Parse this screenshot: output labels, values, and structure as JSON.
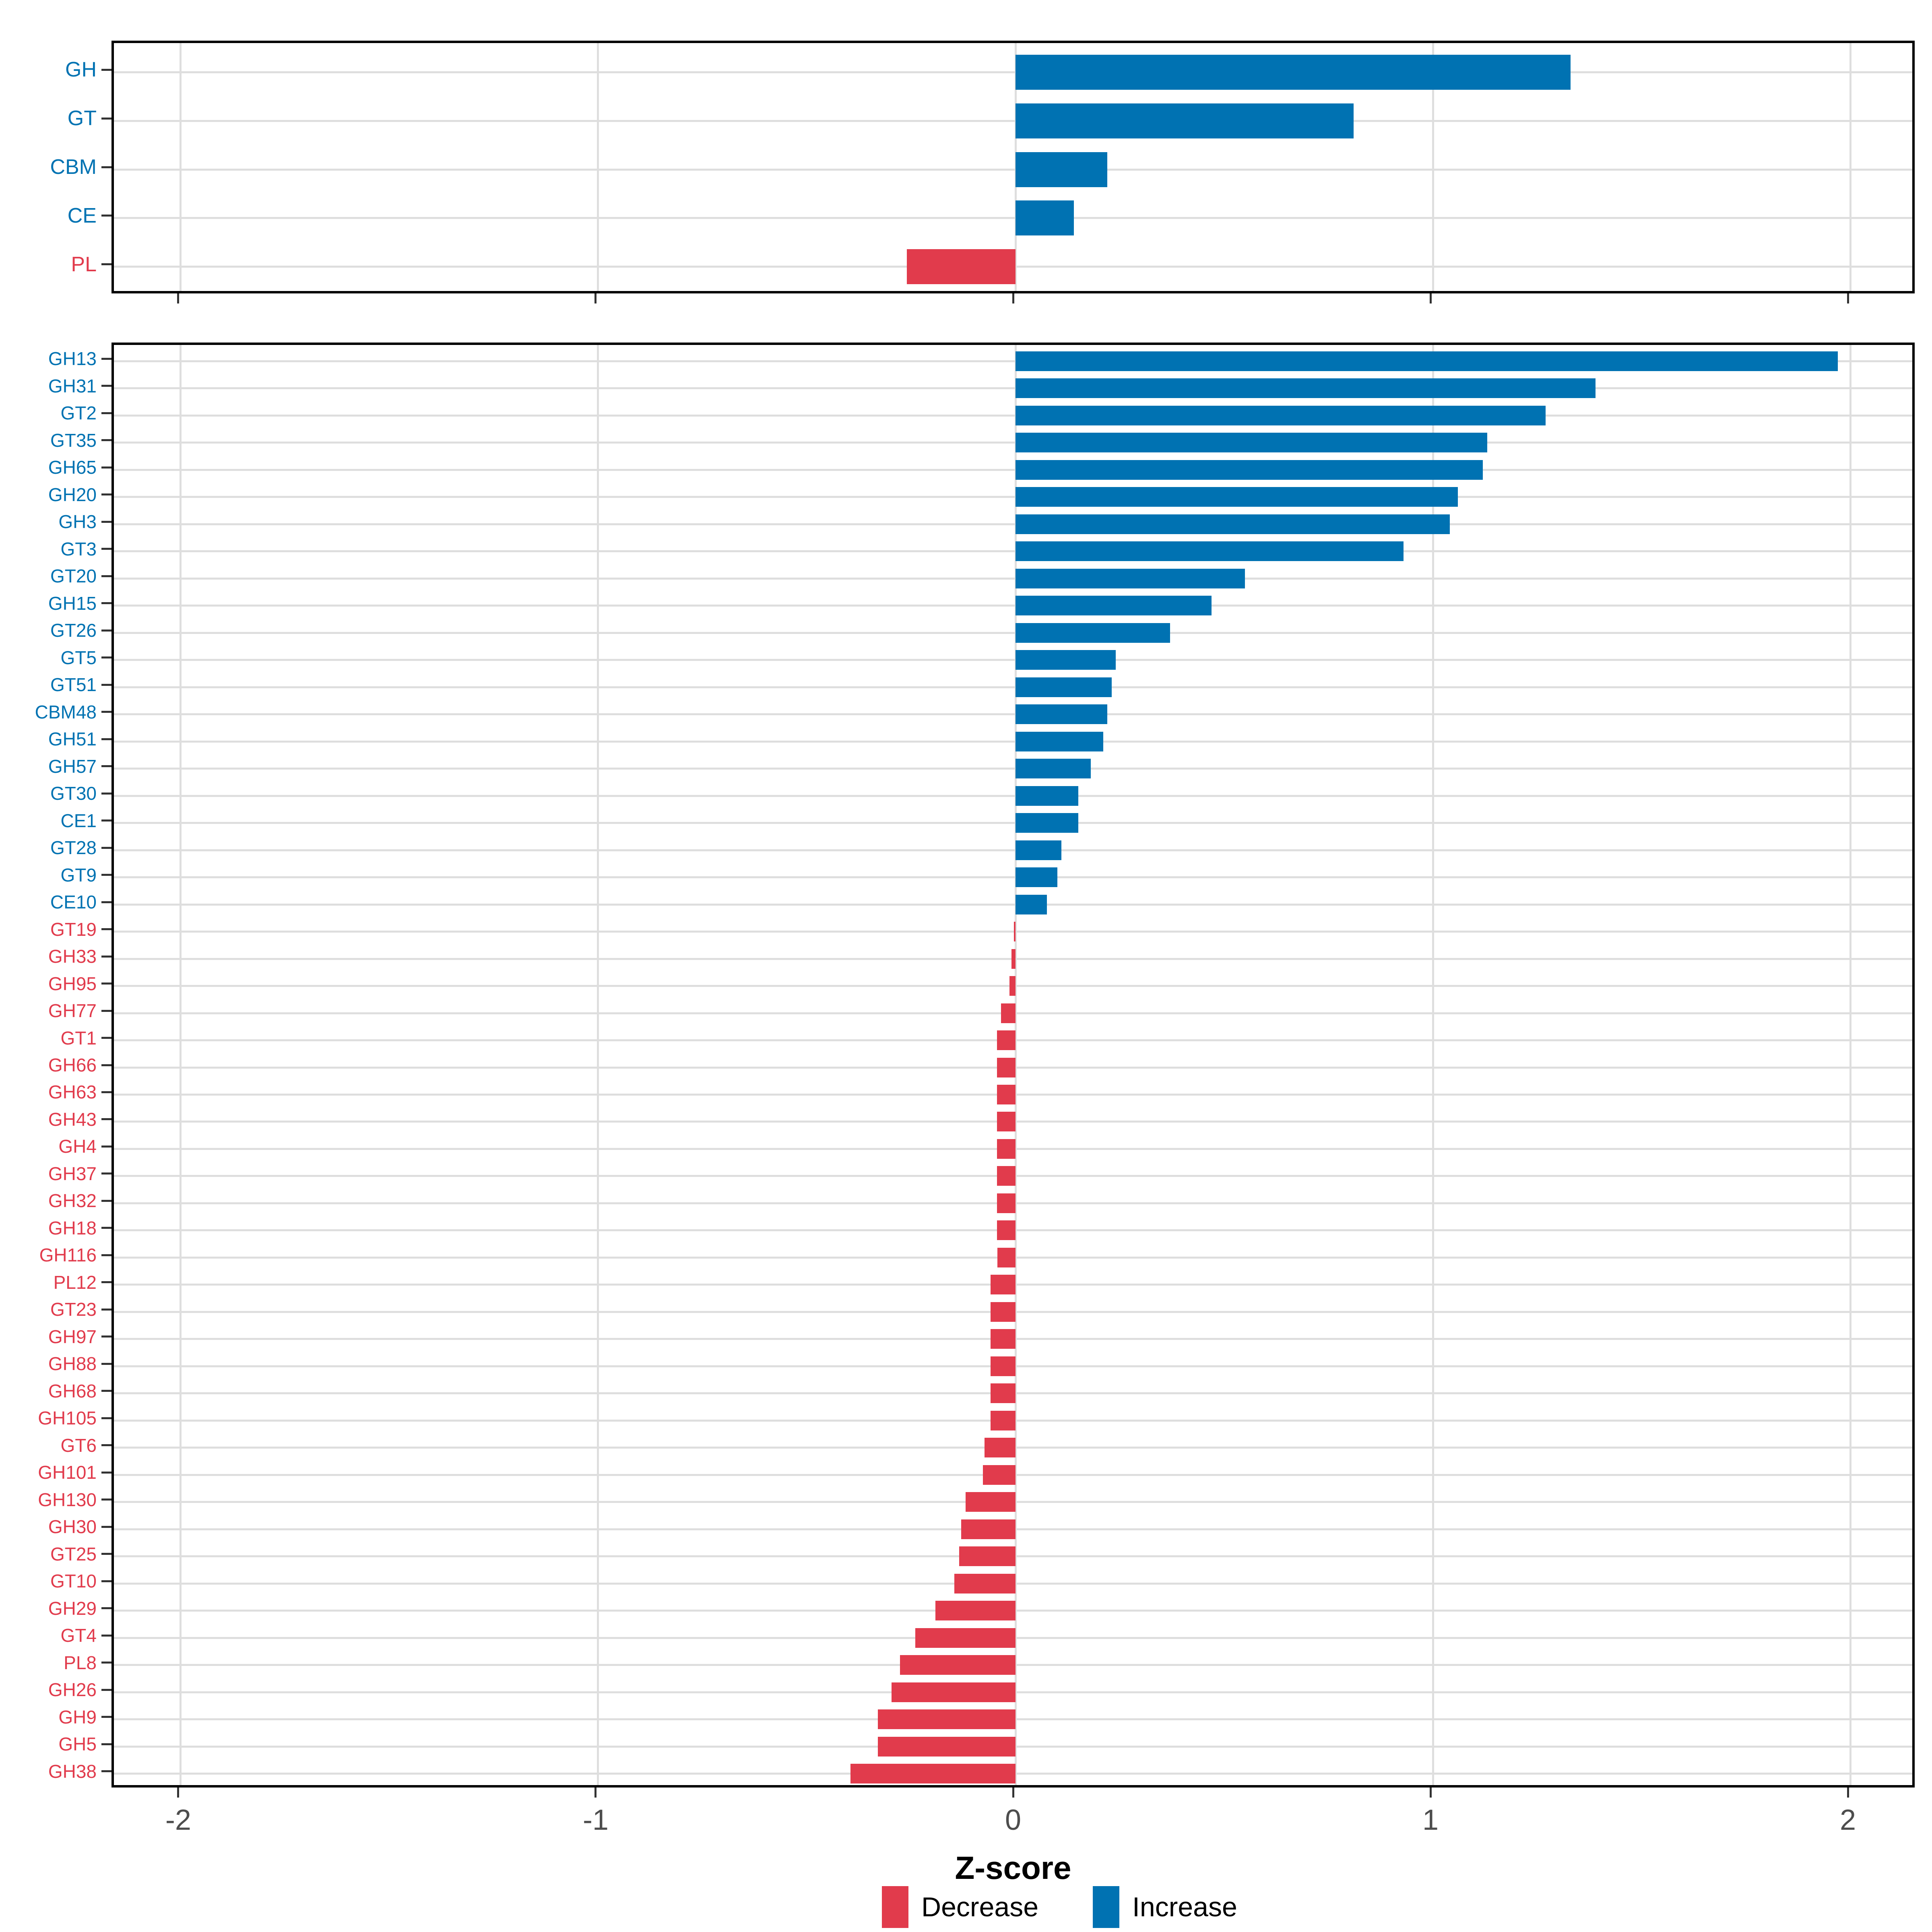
{
  "colors": {
    "increase": "#0072B2",
    "decrease": "#E13B4C",
    "gridline": "#DEDEDE",
    "axis_text": "#4D4D4D",
    "tick_mark": "#333333",
    "panel_border": "#000000",
    "background": "#FFFFFF"
  },
  "axis": {
    "title": "Z-score",
    "ticks": [
      -2,
      -1,
      0,
      1,
      2
    ],
    "tick_labels": [
      "-2",
      "-1",
      "0",
      "1",
      "2"
    ],
    "xlim": [
      -2.16,
      2.16
    ],
    "grid": "major-vertical-and-row-lines"
  },
  "legend": {
    "position": "bottom-center",
    "items": [
      {
        "label": "Decrease",
        "color_key": "decrease"
      },
      {
        "label": "Increase",
        "color_key": "increase"
      }
    ]
  },
  "chart_data": [
    {
      "type": "bar",
      "orientation": "horizontal",
      "panel": "top",
      "title": "",
      "xlabel": "Z-score",
      "ylabel": "",
      "xlim": [
        -2.16,
        2.16
      ],
      "categories": [
        "GH",
        "GT",
        "CBM",
        "CE",
        "PL"
      ],
      "values": [
        1.33,
        0.81,
        0.22,
        0.14,
        -0.26
      ]
    },
    {
      "type": "bar",
      "orientation": "horizontal",
      "panel": "bottom",
      "title": "",
      "xlabel": "Z-score",
      "ylabel": "",
      "xlim": [
        -2.16,
        2.16
      ],
      "categories": [
        "GH13",
        "GH31",
        "GT2",
        "GT35",
        "GH65",
        "GH20",
        "GH3",
        "GT3",
        "GT20",
        "GH15",
        "GT26",
        "GT5",
        "GT51",
        "CBM48",
        "GH51",
        "GH57",
        "GT30",
        "CE1",
        "GT28",
        "GT9",
        "CE10",
        "GT19",
        "GH33",
        "GH95",
        "GH77",
        "GT1",
        "GH66",
        "GH63",
        "GH43",
        "GH4",
        "GH37",
        "GH32",
        "GH18",
        "GH116",
        "PL12",
        "GT23",
        "GH97",
        "GH88",
        "GH68",
        "GH105",
        "GT6",
        "GH101",
        "GH130",
        "GH30",
        "GT25",
        "GT10",
        "GH29",
        "GT4",
        "PL8",
        "GH26",
        "GH9",
        "GH5",
        "GH38"
      ],
      "values": [
        1.97,
        1.39,
        1.27,
        1.13,
        1.12,
        1.06,
        1.04,
        0.93,
        0.55,
        0.47,
        0.37,
        0.24,
        0.23,
        0.22,
        0.21,
        0.18,
        0.15,
        0.15,
        0.11,
        0.1,
        0.075,
        -0.004,
        -0.01,
        -0.014,
        -0.035,
        -0.044,
        -0.044,
        -0.044,
        -0.044,
        -0.044,
        -0.044,
        -0.044,
        -0.044,
        -0.043,
        -0.06,
        -0.06,
        -0.06,
        -0.06,
        -0.06,
        -0.06,
        -0.074,
        -0.078,
        -0.12,
        -0.13,
        -0.135,
        -0.147,
        -0.192,
        -0.24,
        -0.277,
        -0.297,
        -0.33,
        -0.33,
        -0.395
      ]
    }
  ]
}
